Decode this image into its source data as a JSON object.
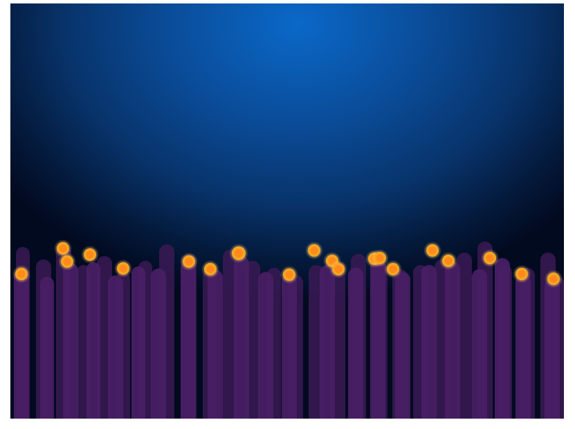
{
  "scene": {
    "background_top": "#0a68c8",
    "background_bottom": "#020a20",
    "pillar_color": "#3a1a55",
    "pillar_color_light": "#4a1f66",
    "orb_outer": "#f5a623",
    "orb_inner": "#ff8a1a",
    "orb_glow": "#ffcf70"
  },
  "pillars": [
    {
      "kind": "back"
    },
    {
      "kind": "front"
    },
    {
      "kind": "back"
    },
    {
      "kind": "front"
    },
    {
      "kind": "back"
    },
    {
      "kind": "front"
    },
    {
      "kind": "back"
    },
    {
      "kind": "front"
    },
    {
      "kind": "back"
    },
    {
      "kind": "front"
    },
    {
      "kind": "back"
    },
    {
      "kind": "front"
    },
    {
      "kind": "back"
    },
    {
      "kind": "front"
    },
    {
      "kind": "back"
    },
    {
      "kind": "front"
    },
    {
      "kind": "back"
    },
    {
      "kind": "front"
    },
    {
      "kind": "back"
    },
    {
      "kind": "front"
    }
  ],
  "orbs": [
    {
      "id": "orb-1"
    },
    {
      "id": "orb-2"
    },
    {
      "id": "orb-3"
    },
    {
      "id": "orb-4"
    },
    {
      "id": "orb-5"
    },
    {
      "id": "orb-6"
    },
    {
      "id": "orb-7"
    },
    {
      "id": "orb-8"
    },
    {
      "id": "orb-9"
    },
    {
      "id": "orb-10"
    },
    {
      "id": "orb-11"
    },
    {
      "id": "orb-12"
    },
    {
      "id": "orb-13"
    },
    {
      "id": "orb-14"
    },
    {
      "id": "orb-15"
    },
    {
      "id": "orb-16"
    },
    {
      "id": "orb-17"
    },
    {
      "id": "orb-18"
    },
    {
      "id": "orb-19"
    },
    {
      "id": "orb-20"
    }
  ]
}
